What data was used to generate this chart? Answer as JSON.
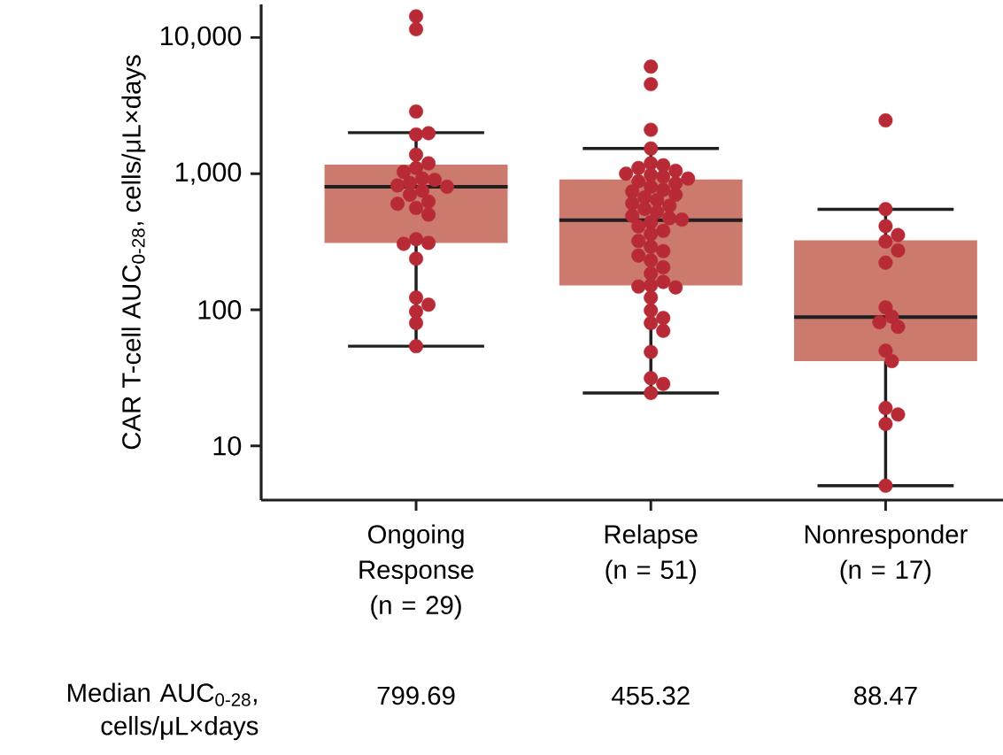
{
  "chart_data": {
    "type": "box",
    "ylabel": "CAR T-cell AUC$_{0-28}$, cells/μL×days",
    "categories": [
      "Ongoing Response (n = 29)",
      "Relapse (n = 51)",
      "Nonresponder (n = 17)"
    ],
    "log": "y",
    "ylim": [
      4,
      17500
    ],
    "yticks": [
      10,
      100,
      {
        "value": 1000,
        "label": "1,000"
      },
      {
        "value": 10000,
        "label": "10,000"
      }
    ],
    "marker": "circle",
    "series": [
      {
        "type": "box",
        "color": "#cb7a6d",
        "boxes": [
          {
            "low": 54,
            "q1": 310,
            "median": 799.69,
            "q3": 1166,
            "high": 2000
          },
          {
            "low": 24.5,
            "q1": 151,
            "median": 455.32,
            "q3": 906,
            "high": 1530
          },
          {
            "low": 5.1,
            "q1": 42,
            "median": 88.47,
            "q3": 324,
            "high": 546
          }
        ]
      },
      {
        "type": "scatter",
        "color": "#b82a35",
        "x": [
          "Ongoing Response (n = 29)",
          "Ongoing Response (n = 29)",
          "Ongoing Response (n = 29)",
          "Ongoing Response (n = 29)",
          "Ongoing Response (n = 29)",
          "Ongoing Response (n = 29)",
          "Ongoing Response (n = 29)",
          "Ongoing Response (n = 29)",
          "Ongoing Response (n = 29)",
          "Ongoing Response (n = 29)",
          "Ongoing Response (n = 29)",
          "Ongoing Response (n = 29)",
          "Ongoing Response (n = 29)",
          "Ongoing Response (n = 29)",
          "Ongoing Response (n = 29)",
          "Ongoing Response (n = 29)",
          "Ongoing Response (n = 29)",
          "Ongoing Response (n = 29)",
          "Ongoing Response (n = 29)",
          "Ongoing Response (n = 29)",
          "Ongoing Response (n = 29)",
          "Ongoing Response (n = 29)",
          "Ongoing Response (n = 29)",
          "Ongoing Response (n = 29)",
          "Ongoing Response (n = 29)",
          "Ongoing Response (n = 29)",
          "Ongoing Response (n = 29)",
          "Ongoing Response (n = 29)",
          "Ongoing Response (n = 29)",
          "Relapse (n = 51)",
          "Relapse (n = 51)",
          "Relapse (n = 51)",
          "Relapse (n = 51)",
          "Relapse (n = 51)",
          "Relapse (n = 51)",
          "Relapse (n = 51)",
          "Relapse (n = 51)",
          "Relapse (n = 51)",
          "Relapse (n = 51)",
          "Relapse (n = 51)",
          "Relapse (n = 51)",
          "Relapse (n = 51)",
          "Relapse (n = 51)",
          "Relapse (n = 51)",
          "Relapse (n = 51)",
          "Relapse (n = 51)",
          "Relapse (n = 51)",
          "Relapse (n = 51)",
          "Relapse (n = 51)",
          "Relapse (n = 51)",
          "Relapse (n = 51)",
          "Relapse (n = 51)",
          "Relapse (n = 51)",
          "Relapse (n = 51)",
          "Relapse (n = 51)",
          "Relapse (n = 51)",
          "Relapse (n = 51)",
          "Relapse (n = 51)",
          "Relapse (n = 51)",
          "Relapse (n = 51)",
          "Relapse (n = 51)",
          "Relapse (n = 51)",
          "Relapse (n = 51)",
          "Relapse (n = 51)",
          "Relapse (n = 51)",
          "Relapse (n = 51)",
          "Relapse (n = 51)",
          "Relapse (n = 51)",
          "Relapse (n = 51)",
          "Relapse (n = 51)",
          "Relapse (n = 51)",
          "Relapse (n = 51)",
          "Relapse (n = 51)",
          "Relapse (n = 51)",
          "Relapse (n = 51)",
          "Relapse (n = 51)",
          "Relapse (n = 51)",
          "Relapse (n = 51)",
          "Relapse (n = 51)",
          "Relapse (n = 51)",
          "Nonresponder (n = 17)",
          "Nonresponder (n = 17)",
          "Nonresponder (n = 17)",
          "Nonresponder (n = 17)",
          "Nonresponder (n = 17)",
          "Nonresponder (n = 17)",
          "Nonresponder (n = 17)",
          "Nonresponder (n = 17)",
          "Nonresponder (n = 17)",
          "Nonresponder (n = 17)",
          "Nonresponder (n = 17)",
          "Nonresponder (n = 17)",
          "Nonresponder (n = 17)",
          "Nonresponder (n = 17)",
          "Nonresponder (n = 17)",
          "Nonresponder (n = 17)",
          "Nonresponder (n = 17)"
        ],
        "values": [
          14300,
          11500,
          2860,
          1940,
          1980,
          1380,
          1190,
          1100,
          1030,
          920,
          900,
          853,
          820,
          800,
          750,
          700,
          624,
          600,
          560,
          500,
          330,
          310,
          305,
          237,
          123,
          109,
          97,
          80,
          54,
          6120,
          4540,
          2100,
          1530,
          1190,
          1150,
          1100,
          1050,
          1000,
          980,
          950,
          920,
          880,
          850,
          800,
          760,
          740,
          700,
          670,
          640,
          605,
          580,
          550,
          520,
          490,
          470,
          460,
          440,
          410,
          380,
          360,
          320,
          290,
          270,
          250,
          230,
          205,
          185,
          160,
          151,
          148,
          146,
          123,
          99,
          87,
          80,
          70,
          49,
          31.5,
          28.5,
          24.5,
          2460,
          548,
          411,
          354,
          318,
          273,
          222,
          104,
          89,
          81,
          75,
          50,
          42,
          19,
          17,
          14.5,
          5.1
        ]
      }
    ],
    "annotations": [
      "Median AUC$_{0-28}$, cells/μL×days",
      "799.69",
      "455.32",
      "88.47"
    ]
  }
}
